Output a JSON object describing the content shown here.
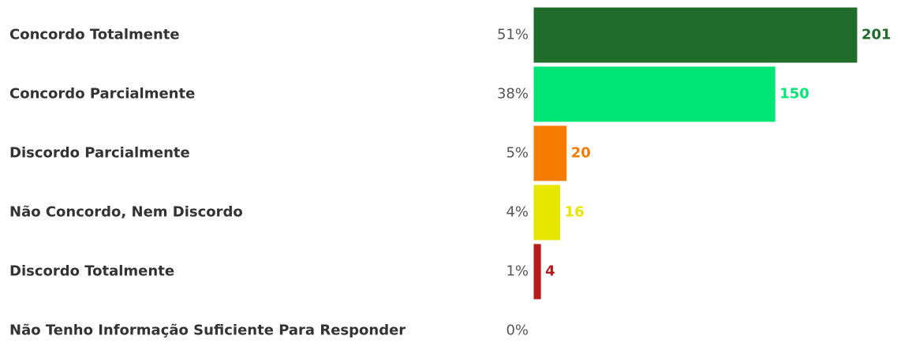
{
  "chart_data": {
    "type": "bar",
    "categories": [
      "Concordo Totalmente",
      "Concordo Parcialmente",
      "Discordo Parcialmente",
      "Não Concordo, Nem Discordo",
      "Discordo Totalmente",
      "Não Tenho Informação Suficiente Para Responder"
    ],
    "percent_labels": [
      "51%",
      "38%",
      "5%",
      "4%",
      "1%",
      "0%"
    ],
    "values": [
      201,
      150,
      20,
      16,
      4,
      0
    ],
    "value_labels": [
      "201",
      "150",
      "20",
      "16",
      "4",
      null
    ],
    "colors": [
      "#1e6b2a",
      "#00e676",
      "#f57c00",
      "#e6e600",
      "#b71c1c",
      "#7ba3c8"
    ]
  }
}
